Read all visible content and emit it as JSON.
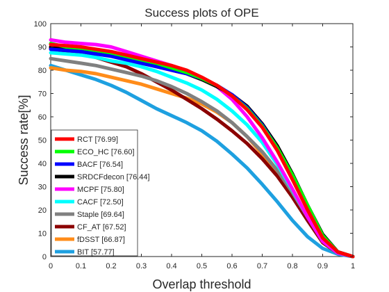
{
  "chart_data": {
    "type": "line",
    "title": "Success plots of OPE",
    "xlabel": "Overlap threshold",
    "ylabel": "Success rate[%]",
    "xlim": [
      0,
      1
    ],
    "ylim": [
      0,
      100
    ],
    "xticks": [
      "0",
      "0.1",
      "0.2",
      "0.3",
      "0.4",
      "0.5",
      "0.6",
      "0.7",
      "0.8",
      "0.9",
      "1"
    ],
    "yticks": [
      "0",
      "10",
      "20",
      "30",
      "40",
      "50",
      "60",
      "70",
      "80",
      "90",
      "100"
    ],
    "grid": false,
    "legend_position": "bottom-left",
    "x": [
      0,
      0.05,
      0.1,
      0.15,
      0.2,
      0.25,
      0.3,
      0.35,
      0.4,
      0.45,
      0.5,
      0.55,
      0.6,
      0.65,
      0.7,
      0.75,
      0.8,
      0.85,
      0.9,
      0.95,
      1.0
    ],
    "series": [
      {
        "name": "RCT [76.99]",
        "color": "#ff0000",
        "values": [
          91,
          90.5,
          90,
          89,
          88,
          86.5,
          85,
          83.5,
          82,
          80,
          77,
          73.5,
          69,
          63,
          55.5,
          45.5,
          33,
          20,
          8,
          2,
          0
        ]
      },
      {
        "name": "ECO_HC [76.60]",
        "color": "#00ff00",
        "values": [
          91.5,
          90,
          89.5,
          88.5,
          87.5,
          86,
          84.5,
          83,
          81,
          79,
          76.5,
          73.5,
          69,
          63.5,
          56,
          46.5,
          35,
          22,
          9,
          2,
          0
        ]
      },
      {
        "name": "BACF [76.54]",
        "color": "#0000ff",
        "values": [
          89,
          88.5,
          88,
          87,
          86,
          84.5,
          83,
          81.5,
          80,
          78.5,
          76.5,
          73.5,
          69.5,
          64,
          56.5,
          46.5,
          34,
          20.5,
          8.5,
          2,
          0
        ]
      },
      {
        "name": "SRDCFdecon [76.44]",
        "color": "#000000",
        "values": [
          90,
          89.5,
          88.5,
          87.5,
          86.5,
          85,
          83.5,
          82,
          80,
          78.5,
          76,
          73,
          69.5,
          64.5,
          57,
          47.5,
          35.5,
          22,
          9.5,
          2,
          0
        ]
      },
      {
        "name": "MCPF [75.80]",
        "color": "#ff00ff",
        "values": [
          93,
          92,
          91.5,
          91,
          90,
          88,
          86,
          84,
          82,
          79.5,
          76.5,
          73,
          67.5,
          60,
          51,
          40.5,
          29,
          17,
          6.5,
          1.5,
          0
        ]
      },
      {
        "name": "CACF [72.50]",
        "color": "#00ffff",
        "values": [
          87.5,
          87,
          86.5,
          85.5,
          84,
          83,
          81.5,
          79.5,
          77,
          74.5,
          71.5,
          67.5,
          62.5,
          56.5,
          49,
          39.5,
          28.5,
          17,
          6.5,
          1.5,
          0
        ]
      },
      {
        "name": "Staple [69.64]",
        "color": "#808080",
        "values": [
          85,
          84,
          83,
          82,
          80.5,
          79,
          77.5,
          75.5,
          73,
          70,
          66.5,
          62.5,
          57.5,
          51.5,
          45,
          37,
          27.5,
          17,
          7,
          1.5,
          0
        ]
      },
      {
        "name": "CF_AT [67.52]",
        "color": "#8b0000",
        "values": [
          89.5,
          88,
          87,
          85.5,
          83.5,
          81.5,
          78.5,
          75,
          71.5,
          67.5,
          63.5,
          59,
          54,
          48.5,
          42,
          34.5,
          25.5,
          15.5,
          6,
          1.5,
          0
        ]
      },
      {
        "name": "fDSST [66.87]",
        "color": "#ff8c1a",
        "values": [
          81,
          80,
          79.5,
          78.5,
          77,
          75.5,
          74,
          72,
          70,
          68,
          65.5,
          62,
          57.5,
          51.5,
          44,
          35.5,
          26,
          16,
          6,
          1.5,
          0
        ]
      },
      {
        "name": "BIT [57.77]",
        "color": "#1ea0e0",
        "values": [
          82,
          80,
          78,
          76,
          73.5,
          70.5,
          67,
          63.5,
          60.5,
          57.5,
          54,
          49.5,
          44,
          38,
          31,
          23.5,
          15.5,
          8.5,
          3.5,
          1,
          0
        ]
      }
    ]
  }
}
